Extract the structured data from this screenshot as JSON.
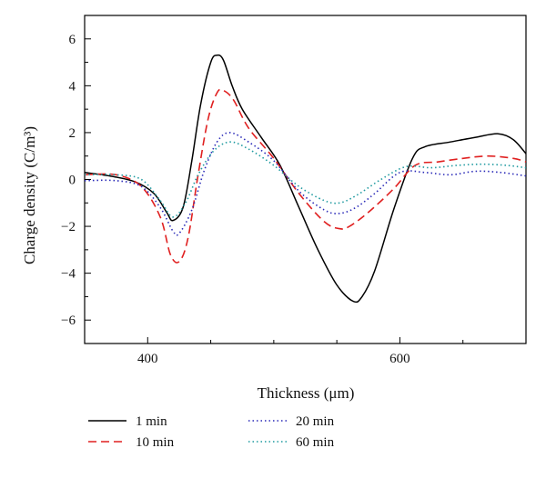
{
  "chart_data": {
    "type": "line",
    "title": "",
    "xlabel": "Thickness (μm)",
    "ylabel": "Charge density (C/m³)",
    "xlim": [
      350,
      700
    ],
    "ylim": [
      -7,
      7
    ],
    "x_ticks": [
      400,
      600
    ],
    "x_tick_labels": [
      "400",
      "600"
    ],
    "y_ticks": [
      -6,
      -4,
      -2,
      0,
      2,
      4,
      6
    ],
    "y_tick_labels": [
      "−6",
      "−4",
      "−2",
      "0",
      "2",
      "4",
      "6"
    ],
    "grid": false,
    "legend_position": "bottom",
    "series": [
      {
        "name": "1 min",
        "color": "#000000",
        "dash": "solid",
        "x": [
          350,
          370,
          390,
          405,
          415,
          420,
          428,
          435,
          442,
          450,
          455,
          460,
          467,
          475,
          490,
          505,
          520,
          535,
          550,
          563,
          570,
          580,
          595,
          610,
          620,
          640,
          660,
          678,
          690,
          700
        ],
        "y": [
          0.3,
          0.15,
          -0.1,
          -0.6,
          -1.4,
          -1.75,
          -1.2,
          0.8,
          3.2,
          5.0,
          5.3,
          5.1,
          4.0,
          3.0,
          1.8,
          0.6,
          -1.2,
          -3.0,
          -4.5,
          -5.2,
          -5.0,
          -3.9,
          -1.3,
          0.9,
          1.4,
          1.6,
          1.8,
          1.95,
          1.7,
          1.1
        ]
      },
      {
        "name": "10 min",
        "color": "#e02020",
        "dash": "dashed",
        "x": [
          350,
          375,
          395,
          410,
          418,
          425,
          432,
          440,
          448,
          455,
          460,
          468,
          480,
          500,
          520,
          540,
          552,
          560,
          575,
          595,
          612,
          630,
          650,
          670,
          690,
          700
        ],
        "y": [
          0.2,
          0.2,
          -0.3,
          -1.6,
          -3.2,
          -3.5,
          -2.5,
          0.2,
          2.6,
          3.7,
          3.8,
          3.4,
          2.2,
          0.9,
          -0.6,
          -1.8,
          -2.1,
          -2.0,
          -1.4,
          -0.4,
          0.6,
          0.75,
          0.9,
          1.0,
          0.9,
          0.75
        ]
      },
      {
        "name": "20 min",
        "color": "#2a2ab8",
        "dash": "dotted",
        "x": [
          350,
          375,
          395,
          410,
          420,
          425,
          435,
          445,
          455,
          465,
          480,
          500,
          520,
          540,
          552,
          565,
          580,
          600,
          620,
          640,
          660,
          680,
          700
        ],
        "y": [
          -0.05,
          -0.05,
          -0.3,
          -1.2,
          -2.2,
          -2.3,
          -1.3,
          0.4,
          1.6,
          2.0,
          1.6,
          0.8,
          -0.5,
          -1.3,
          -1.45,
          -1.2,
          -0.6,
          0.3,
          0.3,
          0.2,
          0.35,
          0.3,
          0.15
        ]
      },
      {
        "name": "60 min",
        "color": "#1f9aa0",
        "dash": "dotted",
        "x": [
          350,
          375,
          395,
          410,
          420,
          430,
          440,
          452,
          465,
          480,
          500,
          520,
          540,
          552,
          565,
          585,
          605,
          625,
          645,
          665,
          685,
          700
        ],
        "y": [
          0.2,
          0.2,
          0.0,
          -0.9,
          -1.6,
          -1.0,
          0.2,
          1.2,
          1.6,
          1.3,
          0.6,
          -0.3,
          -0.9,
          -1.0,
          -0.7,
          0.0,
          0.55,
          0.5,
          0.6,
          0.65,
          0.6,
          0.5
        ]
      }
    ]
  }
}
